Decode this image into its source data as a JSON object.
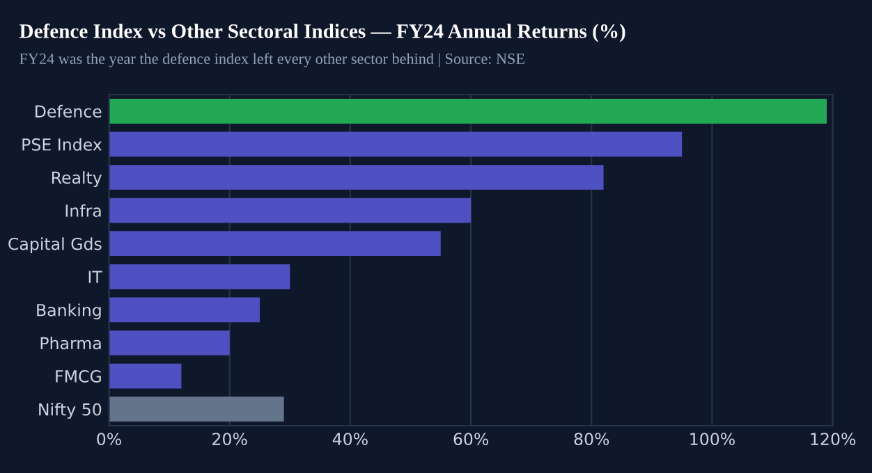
{
  "chart_data": {
    "type": "bar",
    "orientation": "horizontal",
    "title": "Defence Index vs Other Sectoral Indices — FY24 Annual Returns (%)",
    "subtitle": "FY24 was the year the defence index left every other sector behind | Source: NSE",
    "categories": [
      "Defence",
      "PSE Index",
      "Realty",
      "Infra",
      "Capital Gds",
      "IT",
      "Banking",
      "Pharma",
      "FMCG",
      "Nifty 50"
    ],
    "values": [
      119,
      95,
      82,
      60,
      55,
      30,
      25,
      20,
      12,
      29
    ],
    "colors": [
      "#22a855",
      "#4f51c2",
      "#4f51c2",
      "#4f51c2",
      "#4f51c2",
      "#4f51c2",
      "#4f51c2",
      "#4f51c2",
      "#4f51c2",
      "#64748b"
    ],
    "xlim": [
      0,
      120
    ],
    "xticks": [
      {
        "value": 0,
        "label": "0%"
      },
      {
        "value": 20,
        "label": "20%"
      },
      {
        "value": 40,
        "label": "40%"
      },
      {
        "value": 60,
        "label": "60%"
      },
      {
        "value": 80,
        "label": "80%"
      },
      {
        "value": 100,
        "label": "100%"
      },
      {
        "value": 120,
        "label": "120%"
      }
    ],
    "grid": "x"
  }
}
